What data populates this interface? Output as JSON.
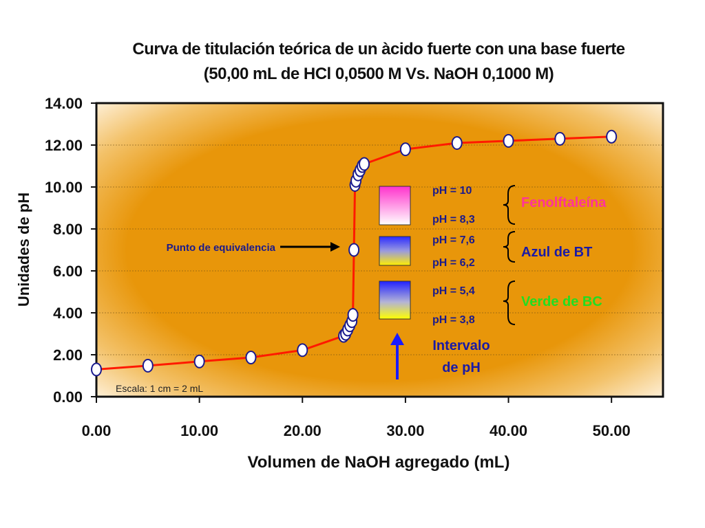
{
  "chart_data": {
    "type": "scatter",
    "title": "Curva de titulación teórica de un àcido fuerte con una base fuerte",
    "subtitle": "(50,00 mL de HCl 0,0500 M Vs. NaOH 0,1000 M)",
    "xlabel": "Volumen de NaOH agregado (mL)",
    "ylabel": "Unidades de pH",
    "xlim": [
      0,
      55
    ],
    "ylim": [
      0,
      14
    ],
    "x_ticks": [
      "0.00",
      "10.00",
      "20.00",
      "30.00",
      "40.00",
      "50.00"
    ],
    "y_ticks": [
      "0.00",
      "2.00",
      "4.00",
      "6.00",
      "8.00",
      "10.00",
      "12.00",
      "14.00"
    ],
    "grid": "horizontal",
    "series": [
      {
        "x": [
          0,
          5,
          10,
          15,
          20,
          24,
          24.2,
          24.4,
          24.6,
          24.8,
          24.9,
          25,
          25.1,
          25.2,
          25.4,
          25.6,
          25.8,
          26,
          30,
          35,
          40,
          45,
          50
        ],
        "y": [
          1.3,
          1.48,
          1.68,
          1.87,
          2.22,
          2.9,
          3.0,
          3.2,
          3.4,
          3.6,
          3.9,
          7.0,
          10.1,
          10.3,
          10.6,
          10.8,
          11.0,
          11.1,
          11.8,
          12.1,
          12.2,
          12.3,
          12.4
        ]
      }
    ],
    "colors": {
      "curve": "#ff1a00",
      "marker_edge": "#1a1a8c",
      "marker_fill": "#ffffff",
      "background": "#e8960a"
    },
    "annotations": {
      "equivalence": "Punto de equivalencia",
      "scale_note": "Escala: 1 cm = 2 mL",
      "interval": [
        "Intervalo",
        "de pH"
      ],
      "indicators": [
        {
          "name": "Fenolftaleína",
          "ph_high": "pH = 10",
          "ph_low": "pH = 8,3",
          "name_color": "#ff3399"
        },
        {
          "name": "Azul de BT",
          "ph_high": "pH = 7,6",
          "ph_low": "pH = 6,2",
          "name_color": "#1a1aa6"
        },
        {
          "name": "Verde de BC",
          "ph_high": "pH = 5,4",
          "ph_low": "pH = 3,8",
          "name_color": "#22dd22"
        }
      ]
    }
  }
}
